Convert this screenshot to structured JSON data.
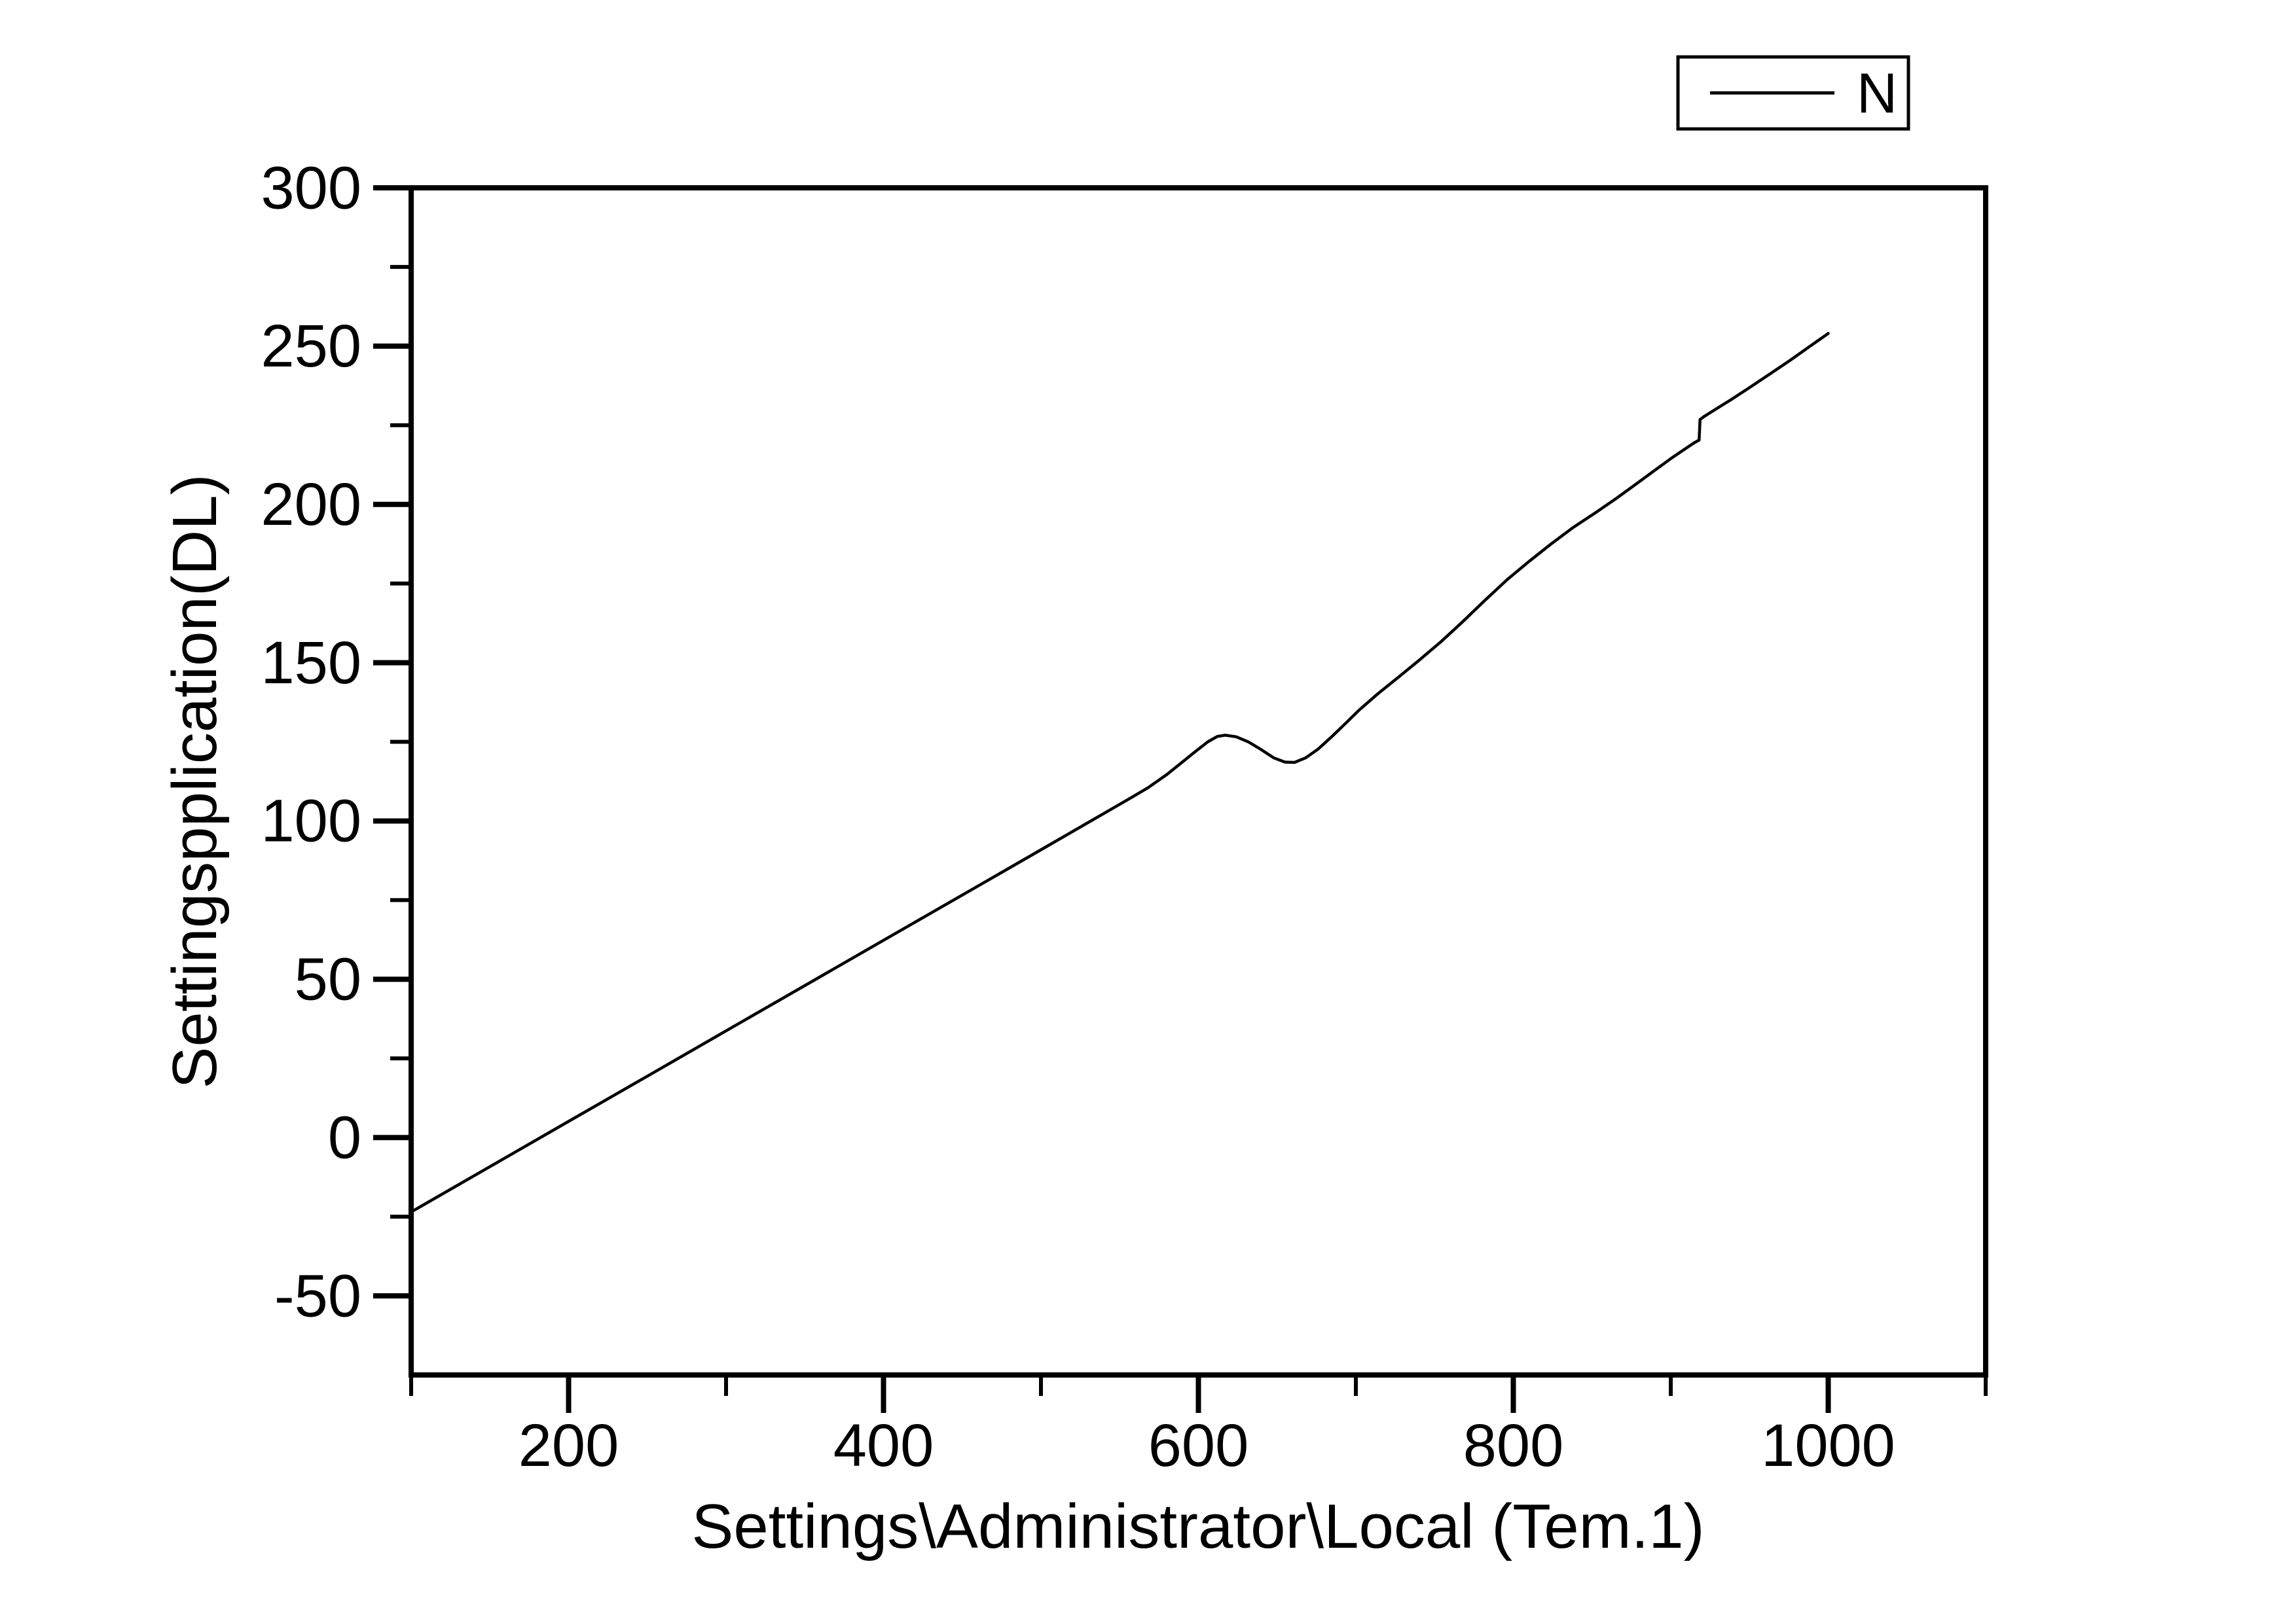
{
  "figure": {
    "background": "#ffffff",
    "foreground": "#000000"
  },
  "chart_data": {
    "type": "line",
    "title": "",
    "xlabel": "Settings\\Administrator\\Local (Tem.1)",
    "ylabel": "Settingspplication(DL)",
    "legend": [
      "N"
    ],
    "legend_position": "top-right-outside",
    "grid": false,
    "xlim": [
      100,
      1100
    ],
    "ylim": [
      -75,
      300
    ],
    "xticks_major": [
      200,
      400,
      600,
      800,
      1000
    ],
    "xtick_labels": [
      "200",
      "400",
      "600",
      "800",
      "1000"
    ],
    "xticks_minor": [
      100,
      300,
      500,
      700,
      900,
      1100
    ],
    "yticks_major": [
      300,
      250,
      200,
      150,
      100,
      50,
      0,
      -50
    ],
    "ytick_labels": [
      "300",
      "250",
      "200",
      "150",
      "100",
      "50",
      "0",
      "-50"
    ],
    "yticks_minor": [
      275,
      225,
      175,
      125,
      75,
      25,
      -25
    ],
    "series": [
      {
        "name": "N",
        "color": "#000000",
        "points": [
          [
            100,
            -23.5
          ],
          [
            150,
            -9.2
          ],
          [
            200,
            5.1
          ],
          [
            250,
            19.4
          ],
          [
            300,
            33.7
          ],
          [
            350,
            48.0
          ],
          [
            400,
            62.3
          ],
          [
            450,
            76.6
          ],
          [
            500,
            90.9
          ],
          [
            540,
            102.4
          ],
          [
            555,
            106.7
          ],
          [
            568,
            110.5
          ],
          [
            580,
            114.7
          ],
          [
            590,
            118.7
          ],
          [
            598,
            121.9
          ],
          [
            606,
            125.0
          ],
          [
            612,
            126.7
          ],
          [
            617,
            127.1
          ],
          [
            624,
            126.6
          ],
          [
            632,
            124.9
          ],
          [
            640,
            122.5
          ],
          [
            648,
            119.9
          ],
          [
            655,
            118.6
          ],
          [
            661,
            118.5
          ],
          [
            668,
            119.9
          ],
          [
            676,
            122.7
          ],
          [
            684,
            126.3
          ],
          [
            693,
            130.6
          ],
          [
            702,
            135.0
          ],
          [
            714,
            140.2
          ],
          [
            727,
            145.4
          ],
          [
            740,
            150.7
          ],
          [
            754,
            156.6
          ],
          [
            768,
            163.0
          ],
          [
            782,
            169.7
          ],
          [
            796,
            176.2
          ],
          [
            810,
            182.0
          ],
          [
            824,
            187.5
          ],
          [
            838,
            192.7
          ],
          [
            852,
            197.3
          ],
          [
            866,
            202.1
          ],
          [
            879,
            206.8
          ],
          [
            891,
            211.2
          ],
          [
            901,
            214.8
          ],
          [
            909,
            217.5
          ],
          [
            915,
            219.5
          ],
          [
            918,
            220.3
          ],
          [
            918.6,
            226.8
          ],
          [
            921,
            227.7
          ],
          [
            928,
            229.9
          ],
          [
            938,
            233.0
          ],
          [
            950,
            236.9
          ],
          [
            963,
            241.2
          ],
          [
            976,
            245.6
          ],
          [
            988,
            249.8
          ],
          [
            1000,
            254.0
          ]
        ]
      }
    ]
  }
}
